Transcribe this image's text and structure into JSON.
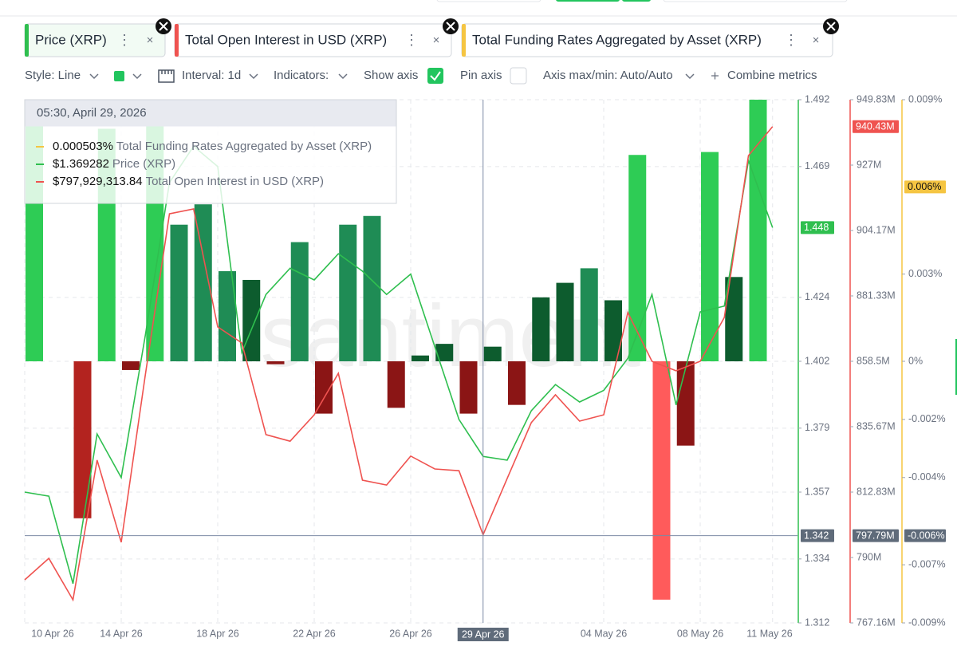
{
  "toolbar": {
    "style": "Style: Line",
    "interval": "Interval: 1d",
    "indicators": "Indicators:",
    "show_axis": "Show axis",
    "pin_axis": "Pin axis",
    "axis_range": "Axis max/min: Auto/Auto",
    "combine": "Combine metrics"
  },
  "watermark": "santiment",
  "tooltip": {
    "title": "05:30, April 29, 2026",
    "values": [
      "0.000503%",
      "$1.369282",
      "$797,929,313.84"
    ]
  },
  "chart_data": {
    "type": "line",
    "categories": [
      "10 Apr 26",
      null,
      null,
      null,
      "14 Apr 26",
      null,
      null,
      null,
      "18 Apr 26",
      null,
      null,
      null,
      "22 Apr 26",
      null,
      null,
      null,
      "26 Apr 26",
      null,
      null,
      null,
      null,
      null,
      null,
      null,
      "04 May 26",
      null,
      null,
      null,
      "08 May 26",
      null,
      null,
      "11 May 26"
    ],
    "ylim": [
      1.312,
      1.492
    ],
    "yticks": [
      1.492,
      1.469,
      1.424,
      1.402,
      1.379,
      1.357,
      1.334,
      1.312
    ],
    "y2lim": [
      767.16,
      949.83
    ],
    "y2ticks": [
      {
        "value": 949.83,
        "label": "949.83M"
      },
      {
        "value": 927,
        "label": "927M"
      },
      {
        "value": 904.17,
        "label": "904.17M"
      },
      {
        "value": 881.33,
        "label": "881.33M"
      },
      {
        "value": 858.5,
        "label": "858.5M"
      },
      {
        "value": 835.67,
        "label": "835.67M"
      },
      {
        "value": 812.83,
        "label": "812.83M"
      },
      {
        "value": 790,
        "label": "790M"
      },
      {
        "value": 767.16,
        "label": "767.16M"
      }
    ],
    "y3lim": [
      -0.009,
      0.009
    ],
    "y3ticks": [
      {
        "value": 0.009,
        "label": "0.009%"
      },
      {
        "value": 0.003,
        "label": "0.003%"
      },
      {
        "value": 0,
        "label": "0%"
      },
      {
        "value": -0.002,
        "label": "-0.002%"
      },
      {
        "value": -0.004,
        "label": "-0.004%"
      },
      {
        "value": -0.007,
        "label": "-0.007%"
      },
      {
        "value": -0.009,
        "label": "-0.009%"
      }
    ],
    "grid": true,
    "series": [
      {
        "name": "Price (XRP)",
        "color": "#2fbf4f",
        "type": "line",
        "values": [
          1.357,
          1.3556,
          1.3255,
          1.377,
          1.362,
          1.411,
          1.4635,
          1.476,
          1.469,
          1.405,
          1.425,
          1.434,
          1.43,
          1.439,
          1.433,
          1.425,
          1.432,
          1.407,
          1.382,
          1.369282,
          1.368,
          1.385,
          1.394,
          1.388,
          1.392,
          1.403,
          1.425,
          1.387,
          1.419,
          1.421,
          1.471,
          1.448
        ],
        "last": {
          "value": 1.448,
          "label": "1.448"
        }
      },
      {
        "name": "Total Open Interest in USD (XRP)",
        "color": "#ef5350",
        "type": "line",
        "axis": "y2",
        "values": [
          782.2,
          789.7,
          775.2,
          824.0,
          795.3,
          853.8,
          910.0,
          911.7,
          870.5,
          864.9,
          832.9,
          830.6,
          839.8,
          854.3,
          817.0,
          815.3,
          825.4,
          820.9,
          820.3,
          797.93,
          817.6,
          837.1,
          846.8,
          837.6,
          839.8,
          875.5,
          858.5,
          855.2,
          858.5,
          873.8,
          930.3,
          940.43
        ],
        "last": {
          "value": 940.43,
          "label": "940.43M"
        }
      },
      {
        "name": "Total Funding Rates Aggregated by Asset (XRP)",
        "color": "#f5c542",
        "type": "bar",
        "axis": "y3",
        "values": [
          0.0083,
          null,
          -0.0054,
          0.008,
          -0.0003,
          0.0083,
          0.0047,
          0.0054,
          0.0031,
          0.0028,
          -0.0001,
          0.0041,
          -0.0018,
          0.0047,
          0.005,
          -0.0016,
          0.0002,
          0.0006,
          -0.0018,
          0.000503,
          -0.0015,
          0.0022,
          0.0027,
          0.0032,
          0.0021,
          0.0071,
          -0.0082,
          -0.0029,
          0.0072,
          0.0029,
          0.009,
          null
        ],
        "bar_colors": [
          "#2ecc55",
          null,
          "#b3231f",
          "#2ecc55",
          "#8b1515",
          "#2ecc55",
          "#1f8c55",
          "#1f8c55",
          "#1f8c55",
          "#0d5c2e",
          "#8b1515",
          "#1f8c55",
          "#8b1515",
          "#1f8c55",
          "#1f8c55",
          "#8b1515",
          "#0d5c2e",
          "#0d5c2e",
          "#8b1515",
          "#0d5c2e",
          "#8b1515",
          "#0d5c2e",
          "#0d5c2e",
          "#1f8c55",
          "#0d5c2e",
          "#2ecc55",
          "#ff5b5b",
          "#8b1515",
          "#2ecc55",
          "#0d5c2e",
          "#2ecc55",
          null
        ],
        "last": {
          "value": 0.006,
          "label": "0.006%"
        }
      }
    ],
    "crosshair": {
      "category": "29 Apr 26",
      "index": 19,
      "y": {
        "value": 1.342,
        "label": "1.342"
      },
      "y2_label": "797.79M",
      "y3_label": "-0.006%"
    }
  }
}
